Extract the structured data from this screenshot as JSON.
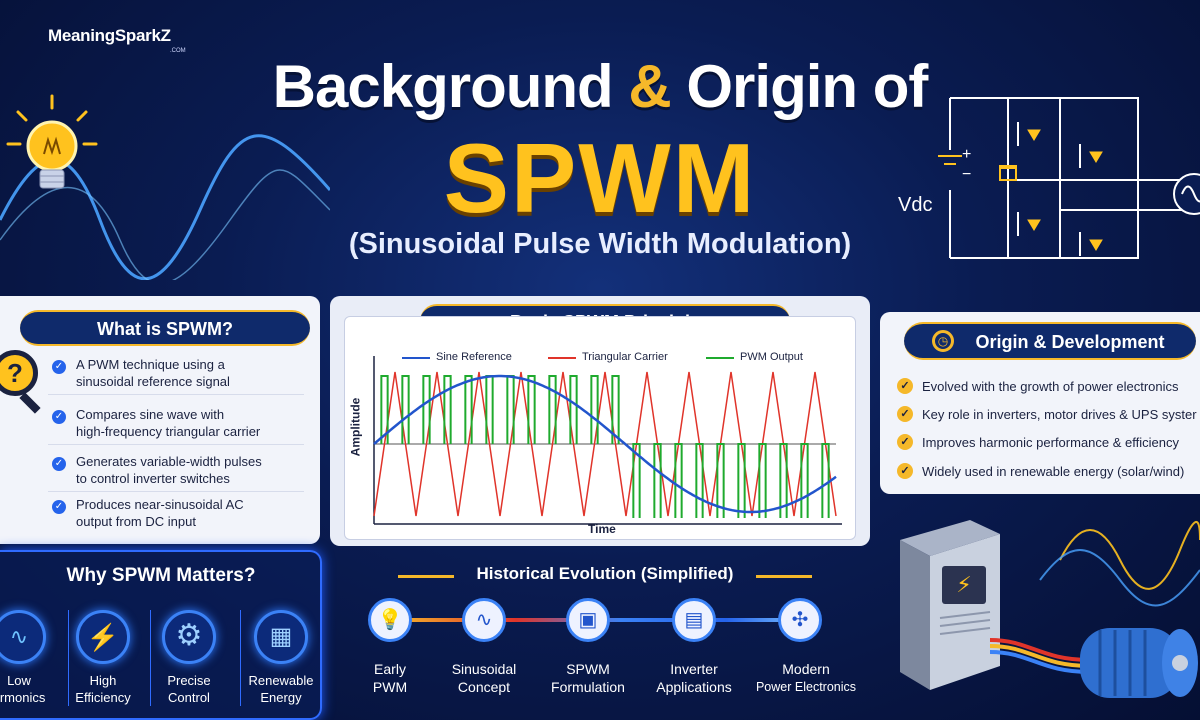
{
  "brand": {
    "name": "MeaningSparkZ",
    "sub": ".COM"
  },
  "title": {
    "line1_a": "Background",
    "line1_amp": "&",
    "line1_b": "Origin of",
    "main": "SPWM",
    "subtitle": "(Sinusoidal Pulse Width Modulation)"
  },
  "circuit": {
    "vdc_label": "Vdc",
    "plus": "+",
    "minus": "−"
  },
  "what": {
    "heading": "What is SPWM?",
    "items": [
      [
        "A PWM technique using a",
        "sinusoidal reference signal"
      ],
      [
        "Compares sine wave with",
        "high-frequency triangular carrier"
      ],
      [
        "Generates variable-width pulses",
        "to control inverter switches"
      ],
      [
        "Produces near-sinusoidal AC",
        "output from DC input"
      ]
    ]
  },
  "principle": {
    "heading": "Basic SPWM Principle",
    "xlabel": "Time",
    "ylabel": "Amplitude",
    "legend": [
      "Sine Reference",
      "Triangular Carrier",
      "PWM Output"
    ]
  },
  "origin": {
    "heading": "Origin & Development",
    "items": [
      "Evolved with the growth of power electronics",
      "Key role in inverters, motor drives & UPS syster",
      "Improves harmonic performance & efficiency",
      "Widely used in renewable energy (solar/wind)"
    ]
  },
  "why": {
    "heading": "Why SPWM Matters?",
    "items": [
      {
        "l1": "Low",
        "l2": "armonics",
        "icon": "waveform-icon"
      },
      {
        "l1": "High",
        "l2": "Efficiency",
        "icon": "lightning-icon"
      },
      {
        "l1": "Precise",
        "l2": "Control",
        "icon": "gear-icon"
      },
      {
        "l1": "Renewable",
        "l2": "Energy",
        "icon": "solar-panel-icon"
      }
    ]
  },
  "history": {
    "heading": "Historical Evolution (Simplified)",
    "items": [
      {
        "l1": "Early",
        "l2": "PWM",
        "icon": "bulb-icon"
      },
      {
        "l1": "Sinusoidal",
        "l2": "Concept",
        "icon": "wave-icon"
      },
      {
        "l1": "SPWM",
        "l2": "Formulation",
        "icon": "chip-icon"
      },
      {
        "l1": "Inverter",
        "l2": "Applications",
        "icon": "inverter-icon"
      },
      {
        "l1": "Modern",
        "l2": "Power Electronics",
        "icon": "wind-solar-icon"
      }
    ]
  },
  "colors": {
    "accent": "#f5b82a",
    "blue": "#2563eb",
    "sine": "#2255cc",
    "carrier": "#e0342a",
    "pwm": "#1faa2e"
  }
}
